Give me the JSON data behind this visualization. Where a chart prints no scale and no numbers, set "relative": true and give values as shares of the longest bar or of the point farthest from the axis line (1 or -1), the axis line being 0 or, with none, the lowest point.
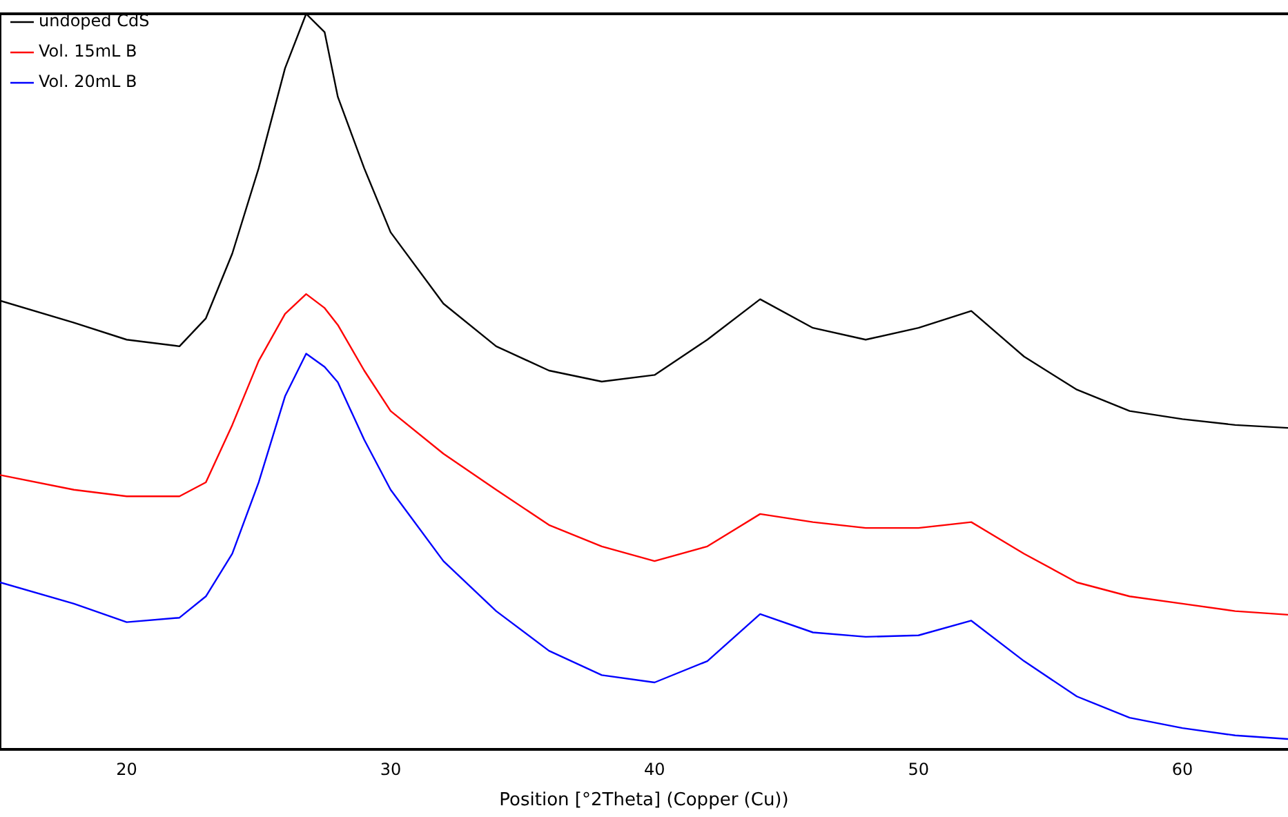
{
  "chart_data": {
    "type": "line",
    "xlabel": "Position [°2Theta] (Copper (Cu))",
    "relative": true,
    "xlim": [
      15.2,
      64
    ],
    "xticks": [
      20,
      30,
      40,
      50,
      60
    ],
    "grid": false,
    "legend": "top left",
    "marker": "none",
    "line_style": "solid",
    "x": [
      15.2,
      18,
      20,
      22,
      23,
      24,
      25,
      26,
      26.8,
      27.5,
      28,
      29,
      30,
      32,
      34,
      36,
      38,
      40,
      42,
      44,
      46,
      48,
      50,
      52,
      54,
      56,
      58,
      60,
      62,
      64
    ],
    "series": [
      {
        "name": "undoped CdS",
        "color": "#000000",
        "values": [
          0.61,
          0.58,
          0.557,
          0.548,
          0.586,
          0.674,
          0.79,
          0.926,
          1.0,
          0.975,
          0.887,
          0.79,
          0.703,
          0.606,
          0.548,
          0.515,
          0.5,
          0.509,
          0.557,
          0.612,
          0.573,
          0.557,
          0.573,
          0.596,
          0.534,
          0.489,
          0.46,
          0.449,
          0.441,
          0.437
        ]
      },
      {
        "name": "Vol. 15mL B",
        "color": "#ff0000",
        "values": [
          0.373,
          0.353,
          0.344,
          0.344,
          0.363,
          0.441,
          0.528,
          0.592,
          0.619,
          0.6,
          0.577,
          0.515,
          0.46,
          0.402,
          0.353,
          0.305,
          0.276,
          0.256,
          0.276,
          0.32,
          0.309,
          0.301,
          0.301,
          0.309,
          0.266,
          0.227,
          0.208,
          0.198,
          0.188,
          0.183
        ]
      },
      {
        "name": "Vol. 20mL B",
        "color": "#0000ff",
        "values": [
          0.227,
          0.198,
          0.173,
          0.179,
          0.208,
          0.266,
          0.363,
          0.48,
          0.538,
          0.52,
          0.499,
          0.421,
          0.353,
          0.256,
          0.188,
          0.134,
          0.101,
          0.091,
          0.12,
          0.184,
          0.159,
          0.153,
          0.155,
          0.175,
          0.12,
          0.072,
          0.043,
          0.029,
          0.019,
          0.014
        ]
      }
    ]
  }
}
